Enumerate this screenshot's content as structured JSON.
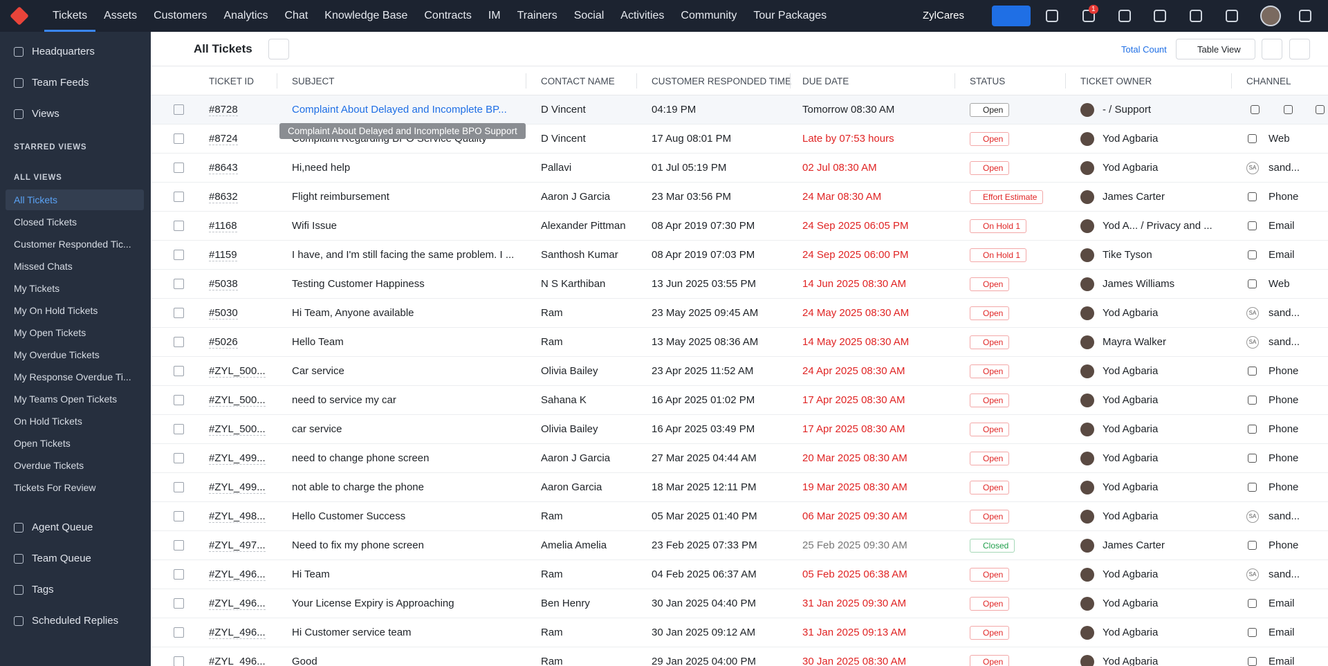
{
  "topbar": {
    "nav": [
      "Tickets",
      "Assets",
      "Customers",
      "Analytics",
      "Chat",
      "Knowledge Base",
      "Contracts",
      "IM",
      "Trainers",
      "Social",
      "Activities",
      "Community",
      "Tour Packages"
    ],
    "org": "ZylCares",
    "badge": "1"
  },
  "sidebar": {
    "top": [
      "Headquarters",
      "Team Feeds",
      "Views"
    ],
    "starred": "STARRED VIEWS",
    "all_views": "ALL VIEWS",
    "views": [
      "All Tickets",
      "Closed Tickets",
      "Customer Responded Tic...",
      "Missed Chats",
      "My Tickets",
      "My On Hold Tickets",
      "My Open Tickets",
      "My Overdue Tickets",
      "My Response Overdue Ti...",
      "My Teams Open Tickets",
      "On Hold Tickets",
      "Open Tickets",
      "Overdue Tickets",
      "Tickets For Review"
    ],
    "bottom": [
      "Agent Queue",
      "Team Queue",
      "Tags",
      "Scheduled Replies"
    ]
  },
  "toolbar": {
    "title": "All Tickets",
    "total_count": "Total Count",
    "view": "Table View"
  },
  "table": {
    "headers": [
      "TICKET ID",
      "SUBJECT",
      "CONTACT NAME",
      "CUSTOMER RESPONDED TIME",
      "DUE DATE",
      "STATUS",
      "TICKET OWNER",
      "CHANNEL"
    ],
    "rows": [
      {
        "id": "#8728",
        "subject": "Complaint About Delayed and Incomplete BP...",
        "contact": "D Vincent",
        "responded": "04:19 PM",
        "due": "Tomorrow 08:30 AM",
        "due_color": "#1f2328",
        "status": "Open",
        "status_color": "#222222",
        "owner": "- / Support",
        "channel": null
      },
      {
        "id": "#8724",
        "subject": "Complaint Regarding BPO Service Quality",
        "contact": "D Vincent",
        "responded": "17 Aug 08:01 PM",
        "due": "Late by 07:53 hours",
        "due_color": "#e02424",
        "status": "Open",
        "status_color": "#e02424",
        "owner": "Yod Agbaria",
        "channel": "Web"
      },
      {
        "id": "#8643",
        "subject": "Hi,need help",
        "contact": "Pallavi",
        "responded": "01 Jul 05:19 PM",
        "due": "02 Jul 08:30 AM",
        "due_color": "#e02424",
        "status": "Open",
        "status_color": "#e02424",
        "owner": "Yod Agbaria",
        "channel": "sand...",
        "channel_badge": "SA"
      },
      {
        "id": "#8632",
        "subject": "Flight reimbursement",
        "contact": "Aaron J Garcia",
        "responded": "23 Mar 03:56 PM",
        "due": "24 Mar 08:30 AM",
        "due_color": "#e02424",
        "status": "Effort Estimate",
        "status_color": "#e02424",
        "owner": "James Carter",
        "channel": "Phone"
      },
      {
        "id": "#1168",
        "subject": "Wifi Issue",
        "contact": "Alexander Pittman",
        "responded": "08 Apr 2019 07:30 PM",
        "due": "24 Sep 2025 06:05 PM",
        "due_color": "#e02424",
        "status": "On Hold 1",
        "status_color": "#e02424",
        "owner": "Yod A...   / Privacy and ...",
        "channel": "Email"
      },
      {
        "id": "#1159",
        "subject": "I have, and I'm still facing the same problem. I ...",
        "contact": "Santhosh Kumar",
        "responded": "08 Apr 2019 07:03 PM",
        "due": "24 Sep 2025 06:00 PM",
        "due_color": "#e02424",
        "status": "On Hold 1",
        "status_color": "#e02424",
        "owner": "Tike Tyson",
        "channel": "Email"
      },
      {
        "id": "#5038",
        "subject": "Testing Customer Happiness",
        "contact": "N S Karthiban",
        "responded": "13 Jun 2025 03:55 PM",
        "due": "14 Jun 2025 08:30 AM",
        "due_color": "#e02424",
        "status": "Open",
        "status_color": "#e02424",
        "owner": "James Williams",
        "channel": "Web"
      },
      {
        "id": "#5030",
        "subject": "Hi Team, Anyone available",
        "contact": "Ram",
        "responded": "23 May 2025 09:45 AM",
        "due": "24 May 2025 08:30 AM",
        "due_color": "#e02424",
        "status": "Open",
        "status_color": "#e02424",
        "owner": "Yod Agbaria",
        "channel": "sand...",
        "channel_badge": "SA"
      },
      {
        "id": "#5026",
        "subject": "Hello Team",
        "contact": "Ram",
        "responded": "13 May 2025 08:36 AM",
        "due": "14 May 2025 08:30 AM",
        "due_color": "#e02424",
        "status": "Open",
        "status_color": "#e02424",
        "owner": "Mayra Walker",
        "channel": "sand...",
        "channel_badge": "SA"
      },
      {
        "id": "#ZYL_500...",
        "subject": "Car service",
        "contact": "Olivia Bailey",
        "responded": "23 Apr 2025 11:52 AM",
        "due": "24 Apr 2025 08:30 AM",
        "due_color": "#e02424",
        "status": "Open",
        "status_color": "#e02424",
        "owner": "Yod Agbaria",
        "channel": "Phone"
      },
      {
        "id": "#ZYL_500...",
        "subject": "need to service my car",
        "contact": "Sahana K",
        "responded": "16 Apr 2025 01:02 PM",
        "due": "17 Apr 2025 08:30 AM",
        "due_color": "#e02424",
        "status": "Open",
        "status_color": "#e02424",
        "owner": "Yod Agbaria",
        "channel": "Phone"
      },
      {
        "id": "#ZYL_500...",
        "subject": "car service",
        "contact": "Olivia Bailey",
        "responded": "16 Apr 2025 03:49 PM",
        "due": "17 Apr 2025 08:30 AM",
        "due_color": "#e02424",
        "status": "Open",
        "status_color": "#e02424",
        "owner": "Yod Agbaria",
        "channel": "Phone"
      },
      {
        "id": "#ZYL_499...",
        "subject": "need to change phone screen",
        "contact": "Aaron J Garcia",
        "responded": "27 Mar 2025 04:44 AM",
        "due": "20 Mar 2025 08:30 AM",
        "due_color": "#e02424",
        "status": "Open",
        "status_color": "#e02424",
        "owner": "Yod Agbaria",
        "channel": "Phone"
      },
      {
        "id": "#ZYL_499...",
        "subject": "not able to charge the phone",
        "contact": "Aaron Garcia",
        "responded": "18 Mar 2025 12:11 PM",
        "due": "19 Mar 2025 08:30 AM",
        "due_color": "#e02424",
        "status": "Open",
        "status_color": "#e02424",
        "owner": "Yod Agbaria",
        "channel": "Phone"
      },
      {
        "id": "#ZYL_498...",
        "subject": "Hello Customer Success",
        "contact": "Ram",
        "responded": "05 Mar 2025 01:40 PM",
        "due": "06 Mar 2025 09:30 AM",
        "due_color": "#e02424",
        "status": "Open",
        "status_color": "#e02424",
        "owner": "Yod Agbaria",
        "channel": "sand...",
        "channel_badge": "SA"
      },
      {
        "id": "#ZYL_497...",
        "subject": "Need to fix my phone screen",
        "contact": "Amelia Amelia",
        "responded": "23 Feb 2025 07:33 PM",
        "due": "25 Feb 2025 09:30 AM",
        "due_color": "#777777",
        "status": "Closed",
        "status_color": "#1e9e4a",
        "owner": "James Carter",
        "channel": "Phone"
      },
      {
        "id": "#ZYL_496...",
        "subject": "Hi Team",
        "contact": "Ram",
        "responded": "04 Feb 2025 06:37 AM",
        "due": "05 Feb 2025 06:38 AM",
        "due_color": "#e02424",
        "status": "Open",
        "status_color": "#e02424",
        "owner": "Yod Agbaria",
        "channel": "sand...",
        "channel_badge": "SA"
      },
      {
        "id": "#ZYL_496...",
        "subject": "Your License Expiry is Approaching",
        "contact": "Ben Henry",
        "responded": "30 Jan 2025 04:40 PM",
        "due": "31 Jan 2025 09:30 AM",
        "due_color": "#e02424",
        "status": "Open",
        "status_color": "#e02424",
        "owner": "Yod Agbaria",
        "channel": "Email"
      },
      {
        "id": "#ZYL_496...",
        "subject": "Hi Customer service team",
        "contact": "Ram",
        "responded": "30 Jan 2025 09:12 AM",
        "due": "31 Jan 2025 09:13 AM",
        "due_color": "#e02424",
        "status": "Open",
        "status_color": "#e02424",
        "owner": "Yod Agbaria",
        "channel": "Email"
      },
      {
        "id": "#ZYL_496...",
        "subject": "Good",
        "contact": "Ram",
        "responded": "29 Jan 2025 04:00 PM",
        "due": "30 Jan 2025 08:30 AM",
        "due_color": "#e02424",
        "status": "Open",
        "status_color": "#e02424",
        "owner": "Yod Agbaria",
        "channel": "Email"
      }
    ]
  },
  "tooltip": "Complaint About Delayed and Incomplete BPO Support"
}
